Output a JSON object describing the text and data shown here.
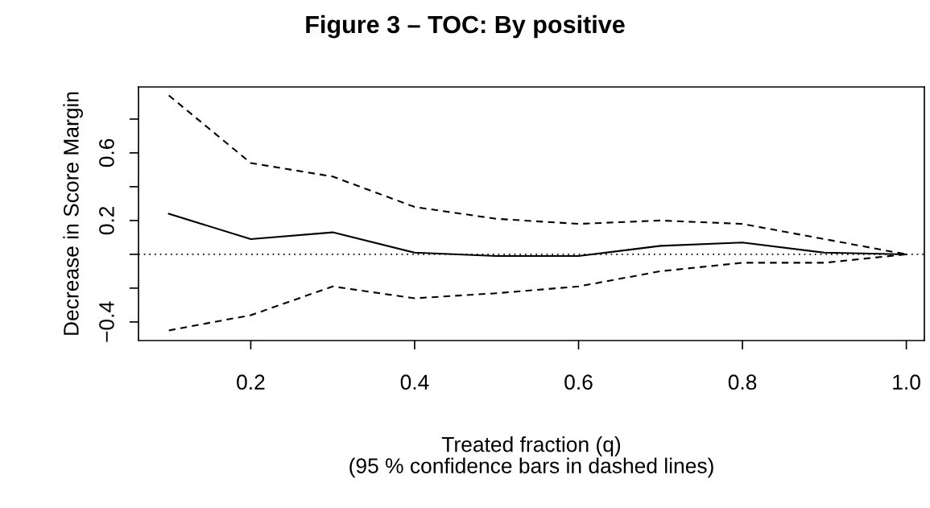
{
  "chart_data": {
    "type": "line",
    "title": "Figure 3 – TOC: By positive",
    "xlabel": "Treated fraction (q)\n(95 % confidence bars in dashed lines)",
    "ylabel": "Decrease in Score Margin",
    "x": [
      0.1,
      0.2,
      0.3,
      0.4,
      0.5,
      0.6,
      0.7,
      0.8,
      0.9,
      1.0
    ],
    "series": [
      {
        "color": "#000000",
        "line_style": "solid",
        "values": [
          0.24,
          0.09,
          0.13,
          0.01,
          -0.01,
          -0.01,
          0.05,
          0.07,
          0.01,
          0.0
        ]
      },
      {
        "color": "#000000",
        "line_style": "dashed",
        "values": [
          0.94,
          0.54,
          0.46,
          0.28,
          0.21,
          0.18,
          0.2,
          0.18,
          0.09,
          0.0
        ]
      },
      {
        "color": "#000000",
        "line_style": "dashed",
        "values": [
          -0.45,
          -0.36,
          -0.19,
          -0.26,
          -0.23,
          -0.19,
          -0.1,
          -0.05,
          -0.05,
          0.0
        ]
      }
    ],
    "xlim": [
      0.063,
      1.022
    ],
    "ylim": [
      -0.51,
      0.99
    ],
    "xticks": [
      0.2,
      0.4,
      0.6,
      0.8,
      {
        "value": 1.0,
        "label": "1.0"
      }
    ],
    "yticks": [
      {
        "value": -0.4,
        "label": "−0.4"
      },
      {
        "value": -0.2,
        "label": null
      },
      {
        "value": 0.0,
        "label": null
      },
      0.2,
      {
        "value": 0.4,
        "label": null
      },
      0.6,
      {
        "value": 0.8,
        "label": null
      }
    ],
    "ref_lines": [
      {
        "axis": "y",
        "value": 0.0,
        "label": null,
        "color": "#000000",
        "line_style": "dotted"
      }
    ],
    "grid": false,
    "legend": false,
    "marker": "none"
  }
}
